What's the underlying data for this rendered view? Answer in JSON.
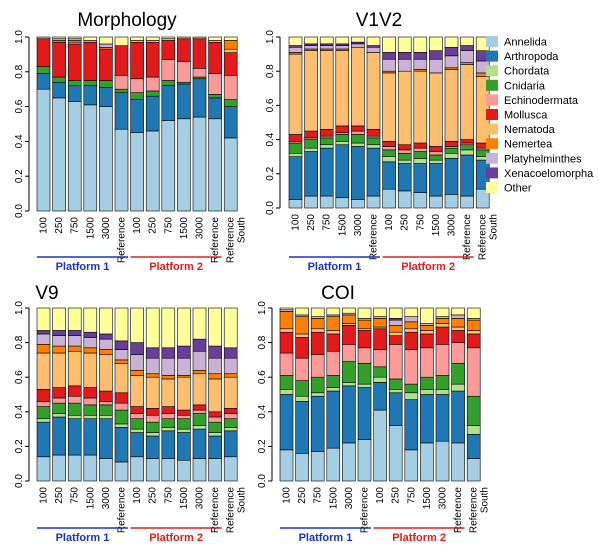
{
  "legend": {
    "items": [
      {
        "name": "Annelida",
        "color": "#a6cee3"
      },
      {
        "name": "Arthropoda",
        "color": "#1f78b4"
      },
      {
        "name": "Chordata",
        "color": "#b2df8a"
      },
      {
        "name": "Cnidaria",
        "color": "#33a02c"
      },
      {
        "name": "Echinodermata",
        "color": "#fb9a99"
      },
      {
        "name": "Mollusca",
        "color": "#e31a1c"
      },
      {
        "name": "Nematoda",
        "color": "#fdbf6f"
      },
      {
        "name": "Nemertea",
        "color": "#ff7f00"
      },
      {
        "name": "Platyhelminthes",
        "color": "#cab2d6"
      },
      {
        "name": "Xenacoelomorpha",
        "color": "#6a3d9a"
      },
      {
        "name": "Other",
        "color": "#ffff99"
      }
    ]
  },
  "platforms": [
    {
      "label": "Platform 1",
      "color": "#1a33cc"
    },
    {
      "label": "Platform 2",
      "color": "#e02020"
    }
  ],
  "chart_data": [
    {
      "type": "bar",
      "stacked": true,
      "title": "Morphology",
      "ylim": [
        0,
        1
      ],
      "yticks": [
        "0.0",
        "0.2",
        "0.4",
        "0.6",
        "0.8",
        "1.0"
      ],
      "categories": [
        "100",
        "250",
        "750",
        "1500",
        "3000",
        "Reference",
        "100",
        "250",
        "750",
        "1500",
        "3000",
        "Reference",
        "Reference South"
      ],
      "platform_groups": [
        [
          0,
          5
        ],
        [
          6,
          11
        ]
      ],
      "series": [
        {
          "name": "Annelida",
          "values": [
            0.7,
            0.65,
            0.63,
            0.61,
            0.6,
            0.47,
            0.45,
            0.46,
            0.52,
            0.53,
            0.54,
            0.53,
            0.42
          ]
        },
        {
          "name": "Arthropoda",
          "values": [
            0.09,
            0.09,
            0.09,
            0.11,
            0.11,
            0.21,
            0.19,
            0.2,
            0.2,
            0.2,
            0.22,
            0.12,
            0.18
          ]
        },
        {
          "name": "Chordata",
          "values": [
            0.0,
            0.0,
            0.0,
            0.0,
            0.0,
            0.0,
            0.0,
            0.0,
            0.0,
            0.0,
            0.0,
            0.0,
            0.0
          ]
        },
        {
          "name": "Cnidaria",
          "values": [
            0.04,
            0.03,
            0.03,
            0.03,
            0.04,
            0.02,
            0.04,
            0.03,
            0.03,
            0.01,
            0.01,
            0.02,
            0.04
          ]
        },
        {
          "name": "Echinodermata",
          "values": [
            0.0,
            0.0,
            0.0,
            0.0,
            0.0,
            0.08,
            0.08,
            0.08,
            0.12,
            0.12,
            0.05,
            0.12,
            0.14
          ]
        },
        {
          "name": "Mollusca",
          "values": [
            0.16,
            0.2,
            0.21,
            0.22,
            0.18,
            0.17,
            0.21,
            0.2,
            0.11,
            0.13,
            0.17,
            0.18,
            0.13
          ]
        },
        {
          "name": "Nematoda",
          "values": [
            0.01,
            0.0,
            0.01,
            0.0,
            0.0,
            0.0,
            0.01,
            0.01,
            0.01,
            0.01,
            0.01,
            0.01,
            0.02
          ]
        },
        {
          "name": "Nemertea",
          "values": [
            0.0,
            0.01,
            0.01,
            0.0,
            0.01,
            0.0,
            0.0,
            0.0,
            0.0,
            0.0,
            0.0,
            0.0,
            0.05
          ]
        },
        {
          "name": "Platyhelminthes",
          "values": [
            0.0,
            0.01,
            0.01,
            0.01,
            0.02,
            0.0,
            0.0,
            0.0,
            0.0,
            0.0,
            0.0,
            0.0,
            0.0
          ]
        },
        {
          "name": "Xenacoelomorpha",
          "values": [
            0.0,
            0.0,
            0.0,
            0.0,
            0.0,
            0.0,
            0.0,
            0.0,
            0.0,
            0.0,
            0.0,
            0.0,
            0.0
          ]
        },
        {
          "name": "Other",
          "values": [
            0.0,
            0.01,
            0.01,
            0.02,
            0.04,
            0.05,
            0.02,
            0.02,
            0.01,
            0.0,
            0.0,
            0.02,
            0.02
          ]
        }
      ]
    },
    {
      "type": "bar",
      "stacked": true,
      "title": "V1V2",
      "ylim": [
        0,
        1
      ],
      "yticks": [
        "0.0",
        "0.2",
        "0.4",
        "0.6",
        "0.8",
        "1.0"
      ],
      "categories": [
        "100",
        "250",
        "750",
        "1500",
        "3000",
        "Reference",
        "100",
        "250",
        "750",
        "1500",
        "3000",
        "Reference",
        "Reference South"
      ],
      "platform_groups": [
        [
          0,
          5
        ],
        [
          6,
          11
        ]
      ],
      "series": [
        {
          "name": "Annelida",
          "values": [
            0.05,
            0.07,
            0.07,
            0.06,
            0.05,
            0.07,
            0.11,
            0.1,
            0.09,
            0.07,
            0.08,
            0.07,
            0.11
          ]
        },
        {
          "name": "Arthropoda",
          "values": [
            0.25,
            0.26,
            0.28,
            0.31,
            0.31,
            0.28,
            0.16,
            0.16,
            0.17,
            0.19,
            0.21,
            0.24,
            0.17
          ]
        },
        {
          "name": "Chordata",
          "values": [
            0.02,
            0.02,
            0.02,
            0.02,
            0.02,
            0.02,
            0.03,
            0.02,
            0.03,
            0.02,
            0.03,
            0.03,
            0.02
          ]
        },
        {
          "name": "Cnidaria",
          "values": [
            0.06,
            0.05,
            0.04,
            0.04,
            0.05,
            0.04,
            0.04,
            0.04,
            0.04,
            0.03,
            0.03,
            0.03,
            0.04
          ]
        },
        {
          "name": "Echinodermata",
          "values": [
            0.01,
            0.01,
            0.01,
            0.01,
            0.02,
            0.01,
            0.02,
            0.02,
            0.02,
            0.02,
            0.01,
            0.01,
            0.01
          ]
        },
        {
          "name": "Mollusca",
          "values": [
            0.04,
            0.04,
            0.04,
            0.04,
            0.03,
            0.04,
            0.03,
            0.03,
            0.03,
            0.03,
            0.03,
            0.02,
            0.03
          ]
        },
        {
          "name": "Nematoda",
          "values": [
            0.47,
            0.47,
            0.46,
            0.44,
            0.46,
            0.45,
            0.4,
            0.43,
            0.42,
            0.43,
            0.42,
            0.44,
            0.39
          ]
        },
        {
          "name": "Nemertea",
          "values": [
            0.01,
            0.01,
            0.01,
            0.01,
            0.0,
            0.0,
            0.01,
            0.0,
            0.01,
            0.0,
            0.01,
            0.01,
            0.02
          ]
        },
        {
          "name": "Platyhelminthes",
          "values": [
            0.03,
            0.02,
            0.02,
            0.02,
            0.02,
            0.03,
            0.07,
            0.07,
            0.06,
            0.08,
            0.07,
            0.07,
            0.07
          ]
        },
        {
          "name": "Xenacoelomorpha",
          "values": [
            0.01,
            0.01,
            0.01,
            0.01,
            0.01,
            0.01,
            0.04,
            0.04,
            0.04,
            0.05,
            0.05,
            0.03,
            0.06
          ]
        },
        {
          "name": "Other",
          "values": [
            0.05,
            0.04,
            0.04,
            0.04,
            0.03,
            0.05,
            0.09,
            0.09,
            0.09,
            0.08,
            0.06,
            0.05,
            0.08
          ]
        }
      ]
    },
    {
      "type": "bar",
      "stacked": true,
      "title": "V9",
      "ylim": [
        0,
        1
      ],
      "yticks": [
        "0.0",
        "0.2",
        "0.4",
        "0.6",
        "0.8",
        "1.0"
      ],
      "categories": [
        "100",
        "250",
        "750",
        "1500",
        "3000",
        "Reference",
        "100",
        "250",
        "750",
        "1500",
        "3000",
        "Reference",
        "Reference South"
      ],
      "platform_groups": [
        [
          0,
          5
        ],
        [
          6,
          11
        ]
      ],
      "series": [
        {
          "name": "Annelida",
          "values": [
            0.14,
            0.15,
            0.15,
            0.15,
            0.13,
            0.11,
            0.14,
            0.13,
            0.13,
            0.12,
            0.13,
            0.13,
            0.14
          ]
        },
        {
          "name": "Arthropoda",
          "values": [
            0.2,
            0.22,
            0.21,
            0.21,
            0.23,
            0.2,
            0.14,
            0.13,
            0.16,
            0.16,
            0.17,
            0.13,
            0.15
          ]
        },
        {
          "name": "Chordata",
          "values": [
            0.02,
            0.02,
            0.02,
            0.02,
            0.02,
            0.02,
            0.02,
            0.02,
            0.02,
            0.02,
            0.02,
            0.02,
            0.02
          ]
        },
        {
          "name": "Cnidaria",
          "values": [
            0.07,
            0.06,
            0.07,
            0.06,
            0.06,
            0.08,
            0.06,
            0.06,
            0.05,
            0.06,
            0.07,
            0.06,
            0.05
          ]
        },
        {
          "name": "Echinodermata",
          "values": [
            0.03,
            0.03,
            0.04,
            0.04,
            0.02,
            0.04,
            0.03,
            0.04,
            0.03,
            0.02,
            0.02,
            0.03,
            0.03
          ]
        },
        {
          "name": "Mollusca",
          "values": [
            0.07,
            0.06,
            0.06,
            0.06,
            0.06,
            0.06,
            0.04,
            0.04,
            0.04,
            0.03,
            0.03,
            0.03,
            0.03
          ]
        },
        {
          "name": "Nematoda",
          "values": [
            0.21,
            0.2,
            0.2,
            0.2,
            0.21,
            0.17,
            0.18,
            0.18,
            0.16,
            0.19,
            0.18,
            0.19,
            0.18
          ]
        },
        {
          "name": "Nemertea",
          "values": [
            0.05,
            0.04,
            0.03,
            0.03,
            0.03,
            0.02,
            0.03,
            0.02,
            0.02,
            0.01,
            0.02,
            0.03,
            0.02
          ]
        },
        {
          "name": "Platyhelminthes",
          "values": [
            0.06,
            0.06,
            0.06,
            0.06,
            0.06,
            0.06,
            0.09,
            0.09,
            0.1,
            0.1,
            0.11,
            0.09,
            0.09
          ]
        },
        {
          "name": "Xenacoelomorpha",
          "values": [
            0.02,
            0.03,
            0.03,
            0.03,
            0.03,
            0.05,
            0.07,
            0.06,
            0.06,
            0.07,
            0.07,
            0.07,
            0.06
          ]
        },
        {
          "name": "Other",
          "values": [
            0.13,
            0.13,
            0.13,
            0.14,
            0.15,
            0.19,
            0.2,
            0.23,
            0.23,
            0.22,
            0.18,
            0.22,
            0.23
          ]
        }
      ]
    },
    {
      "type": "bar",
      "stacked": true,
      "title": "COI",
      "ylim": [
        0,
        1
      ],
      "yticks": [
        "0.0",
        "0.2",
        "0.4",
        "0.6",
        "0.8",
        "1.0"
      ],
      "categories": [
        "100",
        "250",
        "750",
        "1500",
        "3000",
        "Reference",
        "100",
        "250",
        "750",
        "1500",
        "3000",
        "Reference",
        "Reference South"
      ],
      "platform_groups": [
        [
          0,
          5
        ],
        [
          6,
          11
        ]
      ],
      "series": [
        {
          "name": "Annelida",
          "values": [
            0.18,
            0.16,
            0.17,
            0.19,
            0.22,
            0.24,
            0.41,
            0.32,
            0.18,
            0.22,
            0.23,
            0.22,
            0.13
          ]
        },
        {
          "name": "Arthropoda",
          "values": [
            0.32,
            0.3,
            0.32,
            0.33,
            0.33,
            0.3,
            0.16,
            0.19,
            0.29,
            0.28,
            0.27,
            0.3,
            0.14
          ]
        },
        {
          "name": "Chordata",
          "values": [
            0.03,
            0.03,
            0.02,
            0.02,
            0.02,
            0.02,
            0.03,
            0.02,
            0.04,
            0.03,
            0.03,
            0.04,
            0.05
          ]
        },
        {
          "name": "Cnidaria",
          "values": [
            0.08,
            0.09,
            0.09,
            0.07,
            0.12,
            0.12,
            0.06,
            0.06,
            0.05,
            0.07,
            0.08,
            0.12,
            0.17
          ]
        },
        {
          "name": "Echinodermata",
          "values": [
            0.13,
            0.13,
            0.13,
            0.14,
            0.1,
            0.09,
            0.1,
            0.2,
            0.2,
            0.17,
            0.18,
            0.12,
            0.28
          ]
        },
        {
          "name": "Mollusca",
          "values": [
            0.12,
            0.12,
            0.13,
            0.1,
            0.11,
            0.1,
            0.12,
            0.05,
            0.1,
            0.08,
            0.1,
            0.07,
            0.08
          ]
        },
        {
          "name": "Nematoda",
          "values": [
            0.02,
            0.02,
            0.02,
            0.02,
            0.01,
            0.01,
            0.01,
            0.02,
            0.02,
            0.02,
            0.02,
            0.02,
            0.02
          ]
        },
        {
          "name": "Nemertea",
          "values": [
            0.1,
            0.1,
            0.06,
            0.08,
            0.05,
            0.05,
            0.05,
            0.04,
            0.04,
            0.03,
            0.03,
            0.05,
            0.06
          ]
        },
        {
          "name": "Platyhelminthes",
          "values": [
            0.01,
            0.01,
            0.01,
            0.01,
            0.01,
            0.01,
            0.01,
            0.03,
            0.03,
            0.01,
            0.01,
            0.02,
            0.01
          ]
        },
        {
          "name": "Xenacoelomorpha",
          "values": [
            0.0,
            0.0,
            0.0,
            0.0,
            0.0,
            0.0,
            0.0,
            0.01,
            0.0,
            0.0,
            0.0,
            0.0,
            0.0
          ]
        },
        {
          "name": "Other",
          "values": [
            0.01,
            0.04,
            0.05,
            0.04,
            0.03,
            0.06,
            0.05,
            0.06,
            0.05,
            0.09,
            0.05,
            0.04,
            0.06
          ]
        }
      ]
    }
  ]
}
